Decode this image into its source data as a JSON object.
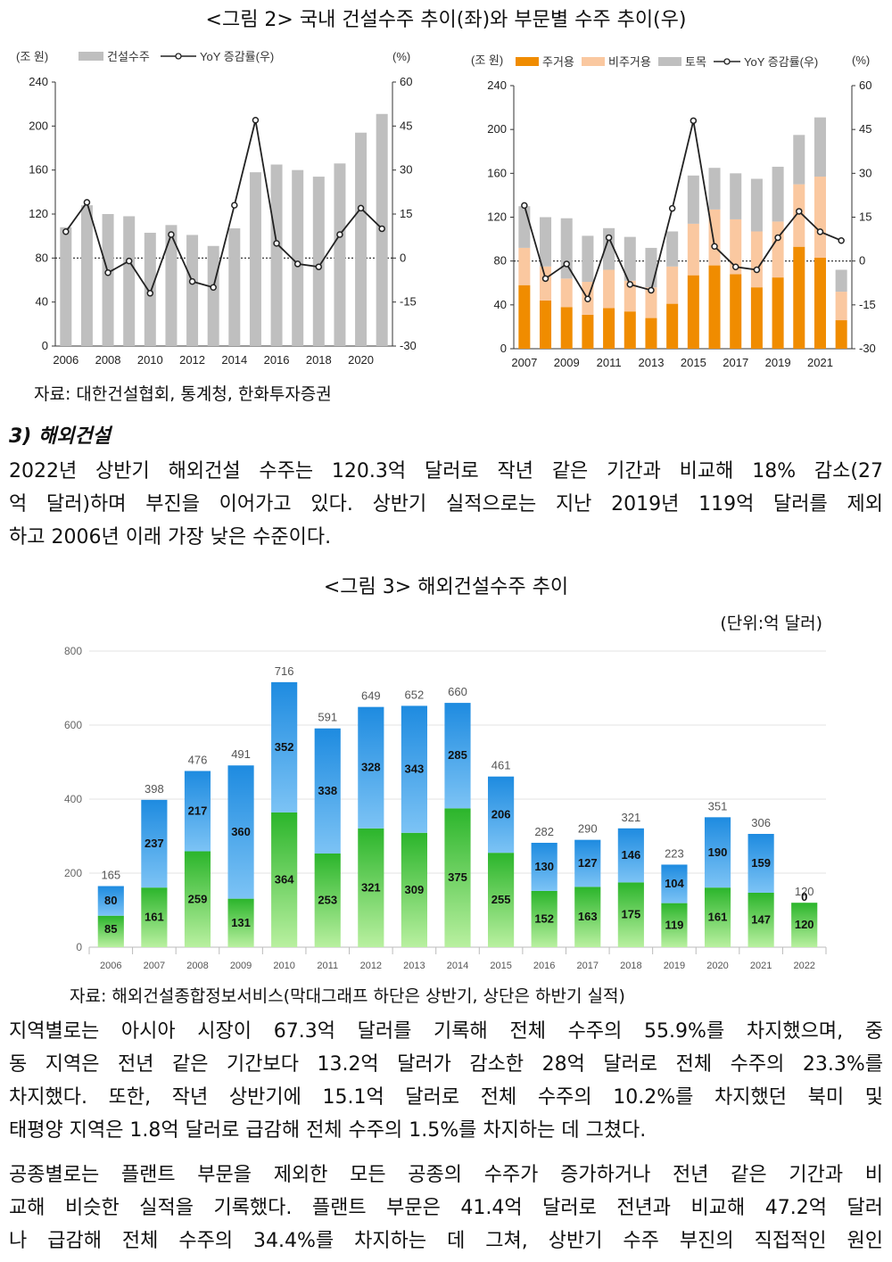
{
  "fig2": {
    "title": "<그림 2> 국내 건설수주 추이(좌)와 부문별 수주 추이(우)",
    "left": {
      "unit_left": "(조 원)",
      "unit_right": "(%)",
      "legend_bar": "건설수주",
      "legend_line": "YoY 증감률(우)",
      "y_left_ticks": [
        "0",
        "40",
        "80",
        "120",
        "160",
        "200",
        "240"
      ],
      "y_right_ticks": [
        "-30",
        "-15",
        "0",
        "15",
        "30",
        "45",
        "60"
      ],
      "x_labels": [
        "2006",
        "2008",
        "2010",
        "2012",
        "2014",
        "2016",
        "2018",
        "2020"
      ]
    },
    "right": {
      "unit_left": "(조 원)",
      "unit_right": "(%)",
      "legend_a": "주거용",
      "legend_b": "비주거용",
      "legend_c": "토목",
      "legend_line": "YoY 증감률(우)",
      "y_left_ticks": [
        "0",
        "40",
        "80",
        "120",
        "160",
        "200",
        "240"
      ],
      "y_right_ticks": [
        "-30",
        "-15",
        "0",
        "15",
        "30",
        "45",
        "60"
      ],
      "x_labels": [
        "2007",
        "2009",
        "2011",
        "2013",
        "2015",
        "2017",
        "2019",
        "2021"
      ]
    },
    "source": "자료: 대한건설협회, 통계청, 한화투자증권"
  },
  "section": {
    "heading": "3) 해외건설",
    "para1": [
      "2022년 상반기 해외건설 수주는 120.3억 달러로 작년 같은 기간과 비교해 18% 감소(27",
      "억 달러)하며 부진을 이어가고 있다. 상반기 실적으로는 지난 2019년 119억 달러를 제외",
      "하고 2006년 이래 가장 낮은 수준이다."
    ]
  },
  "fig3": {
    "title": "<그림 3> 해외건설수주 추이",
    "unit": "(단위:억 달러)",
    "y_ticks": [
      "0",
      "200",
      "400",
      "600",
      "800"
    ],
    "source": "자료: 해외건설종합정보서비스(막대그래프 하단은 상반기, 상단은 하반기 실적)"
  },
  "para2": [
    "지역별로는 아시아 시장이 67.3억 달러를 기록해 전체 수주의 55.9%를 차지했으며, 중",
    "동 지역은 전년 같은 기간보다 13.2억 달러가 감소한 28억 달러로 전체 수주의 23.3%를",
    "차지했다. 또한, 작년 상반기에 15.1억 달러로 전체 수주의 10.2%를 차지했던 북미 및",
    "태평양 지역은 1.8억 달러로 급감해 전체 수주의 1.5%를 차지하는 데 그쳤다."
  ],
  "para3": [
    "공종별로는 플랜트 부문을 제외한 모든 공종의 수주가 증가하거나 전년 같은 기간과 비",
    "교해 비슷한 실적을 기록했다. 플랜트 부문은 41.4억 달러로 전년과 비교해 47.2억 달러",
    "나 급감해 전체 수주의 34.4%를 차지하는 데 그쳐, 상반기 수주 부진의 직접적인 원인"
  ],
  "chart_data": [
    {
      "type": "bar",
      "title": "",
      "categories": [
        "2006",
        "2007",
        "2008",
        "2009",
        "2010",
        "2011",
        "2012",
        "2013",
        "2014",
        "2015",
        "2016",
        "2017",
        "2018",
        "2019",
        "2020",
        "2021"
      ],
      "series": [
        {
          "name": "건설수주",
          "values": [
            108,
            128,
            120,
            118,
            103,
            110,
            101,
            91,
            107,
            158,
            165,
            160,
            154,
            166,
            194,
            211
          ],
          "color": "#bfbfbf"
        },
        {
          "name": "YoY 증감률(우)",
          "values": [
            9,
            19,
            -5,
            -1,
            -12,
            8,
            -8,
            -10,
            18,
            47,
            5,
            -2,
            -3,
            8,
            17,
            10
          ],
          "axis": "right",
          "color": "#222222"
        }
      ],
      "ylim_left": [
        0,
        240
      ],
      "ylim_right": [
        -30,
        60
      ]
    },
    {
      "type": "bar",
      "stacked": true,
      "title": "",
      "categories": [
        "2007",
        "2008",
        "2009",
        "2010",
        "2011",
        "2012",
        "2013",
        "2014",
        "2015",
        "2016",
        "2017",
        "2018",
        "2019",
        "2020",
        "2021",
        "2022"
      ],
      "series": [
        {
          "name": "주거용",
          "values": [
            58,
            44,
            38,
            31,
            37,
            34,
            28,
            41,
            67,
            76,
            68,
            56,
            65,
            93,
            83,
            26
          ],
          "color": "#f08c00"
        },
        {
          "name": "비주거용",
          "values": [
            34,
            31,
            26,
            30,
            35,
            28,
            28,
            34,
            47,
            51,
            50,
            51,
            51,
            57,
            74,
            26
          ],
          "color": "#fac8a0"
        },
        {
          "name": "토목",
          "values": [
            38,
            45,
            55,
            42,
            38,
            40,
            36,
            32,
            44,
            38,
            42,
            48,
            50,
            45,
            54,
            20
          ],
          "color": "#bfbfbf"
        },
        {
          "name": "YoY 증감률(우)",
          "values": [
            19,
            -6,
            -1,
            -13,
            8,
            -8,
            -10,
            18,
            48,
            5,
            -2,
            -3,
            8,
            17,
            10,
            7
          ],
          "axis": "right",
          "color": "#222222"
        }
      ],
      "ylim_left": [
        0,
        240
      ],
      "ylim_right": [
        -30,
        60
      ]
    },
    {
      "type": "bar",
      "stacked": true,
      "title": "",
      "categories": [
        "2006",
        "2007",
        "2008",
        "2009",
        "2010",
        "2011",
        "2012",
        "2013",
        "2014",
        "2015",
        "2016",
        "2017",
        "2018",
        "2019",
        "2020",
        "2021",
        "2022"
      ],
      "series": [
        {
          "name": "상반기",
          "values": [
            85,
            161,
            259,
            131,
            364,
            253,
            321,
            309,
            375,
            255,
            152,
            163,
            175,
            119,
            161,
            147,
            120
          ]
        },
        {
          "name": "하반기",
          "values": [
            80,
            237,
            217,
            360,
            352,
            338,
            328,
            343,
            285,
            206,
            130,
            127,
            146,
            104,
            190,
            159,
            0
          ]
        }
      ],
      "totals": [
        165,
        398,
        476,
        491,
        716,
        591,
        649,
        652,
        660,
        461,
        282,
        290,
        321,
        223,
        351,
        306,
        120
      ],
      "ylim": [
        0,
        800
      ]
    }
  ]
}
